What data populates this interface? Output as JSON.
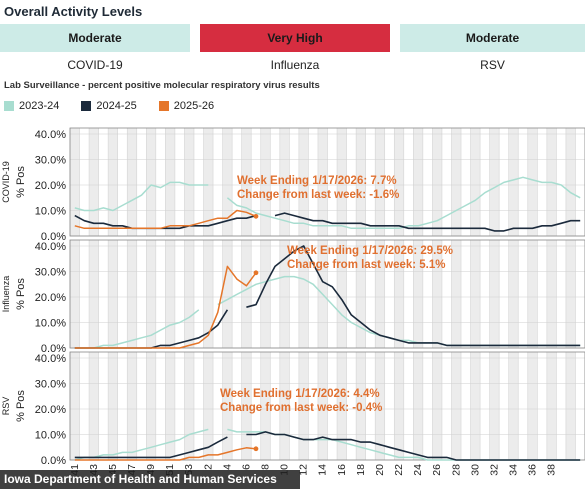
{
  "header": {
    "title": "Overall Activity Levels"
  },
  "activity_levels": [
    {
      "level": "Moderate",
      "virus": "COVID-19",
      "color": "#cdebe7",
      "text_color": "#1a1a1a"
    },
    {
      "level": "Very High",
      "virus": "Influenza",
      "color": "#d62d40",
      "text_color": "#1a1a1a"
    },
    {
      "level": "Moderate",
      "virus": "RSV",
      "color": "#cdebe7",
      "text_color": "#1a1a1a"
    }
  ],
  "subtitle": "Lab Surveillance - percent positive molecular respiratory virus results",
  "legend": [
    {
      "label": "2023-24",
      "color": "#a8ddd0"
    },
    {
      "label": "2024-25",
      "color": "#1b2a3c"
    },
    {
      "label": "2025-26",
      "color": "#e5762a"
    }
  ],
  "footer": {
    "text": "Iowa Department of Health and Human Services"
  },
  "chart_data": {
    "type": "line",
    "x_label_weeks": [
      "41",
      "43",
      "45",
      "47",
      "49",
      "51",
      "53",
      "2",
      "4",
      "6",
      "8",
      "10",
      "12",
      "14",
      "16",
      "18",
      "20",
      "22",
      "24",
      "26",
      "28",
      "30",
      "32",
      "34",
      "36",
      "38"
    ],
    "ylabel": "% Pos",
    "panels": [
      {
        "name": "COVID-19",
        "ylim": [
          0,
          40
        ],
        "yticks": [
          "0.0%",
          "10.0%",
          "20.0%",
          "30.0%",
          "40.0%"
        ],
        "annotation": [
          "Week Ending 1/17/2026: 7.7%",
          "Change from last week:  -1.6%"
        ],
        "series": [
          {
            "name": "2023-24",
            "values": [
              11,
              10,
              10,
              11,
              10,
              12,
              14,
              16,
              20,
              19,
              21,
              21,
              20,
              20,
              20,
              null,
              15,
              12,
              11,
              9,
              8,
              7,
              6,
              5,
              5,
              4,
              4,
              4,
              4,
              3,
              3,
              3,
              3,
              3,
              3,
              4,
              4,
              5,
              6,
              8,
              10,
              12,
              14,
              17,
              19,
              21,
              22,
              23,
              22,
              21,
              21,
              20,
              17,
              15
            ]
          },
          {
            "name": "2024-25",
            "values": [
              8,
              6,
              5,
              5,
              4,
              4,
              3,
              3,
              3,
              3,
              3,
              3,
              4,
              4,
              4,
              5,
              6,
              7,
              7,
              8,
              null,
              8,
              9,
              8,
              7,
              6,
              6,
              5,
              5,
              5,
              5,
              4,
              4,
              4,
              4,
              3,
              3,
              3,
              3,
              3,
              3,
              3,
              3,
              3,
              2,
              2,
              3,
              3,
              3,
              4,
              4,
              5,
              6,
              6,
              7,
              7,
              8,
              8,
              9,
              10,
              12,
              12,
              12,
              11,
              10
            ]
          },
          {
            "name": "2025-26",
            "values": [
              4,
              3,
              3,
              3,
              3,
              3,
              3,
              3,
              3,
              3,
              4,
              4,
              4,
              5,
              6,
              7,
              7,
              10,
              9.3,
              7.7
            ]
          }
        ]
      },
      {
        "name": "Influenza",
        "ylim": [
          0,
          40
        ],
        "yticks": [
          "0.0%",
          "10.0%",
          "20.0%",
          "30.0%",
          "40.0%"
        ],
        "annotation": [
          "Week Ending 1/17/2026: 29.5%",
          "Change from last week:  5.1%"
        ],
        "series": [
          {
            "name": "2023-24",
            "values": [
              0,
              0,
              0,
              1,
              1,
              2,
              3,
              4,
              5,
              7,
              9,
              10,
              12,
              15,
              null,
              17,
              19,
              21,
              23,
              25,
              26,
              27,
              28,
              28,
              27,
              25,
              21,
              17,
              13,
              10,
              8,
              6,
              5,
              4,
              3,
              3,
              2,
              2,
              2,
              1,
              1,
              1,
              1,
              1,
              1,
              1,
              1,
              1,
              1,
              1,
              1,
              1,
              1,
              1,
              1,
              1
            ]
          },
          {
            "name": "2024-25",
            "values": [
              0,
              0,
              0,
              0,
              0,
              0,
              0,
              0,
              0,
              1,
              1,
              2,
              3,
              4,
              6,
              9,
              15,
              null,
              16,
              17,
              25,
              32,
              35,
              38,
              40,
              33,
              26,
              24,
              19,
              13,
              10,
              7,
              5,
              4,
              3,
              2,
              2,
              2,
              2,
              1,
              1,
              1,
              1,
              1,
              1,
              1,
              1,
              1,
              1,
              1,
              1,
              1,
              1,
              1,
              1,
              1
            ]
          },
          {
            "name": "2025-26",
            "values": [
              0,
              0,
              0,
              0,
              0,
              0,
              0,
              0,
              0,
              0,
              0,
              0,
              1,
              2,
              5,
              14,
              32,
              27,
              24.4,
              29.5
            ]
          }
        ]
      },
      {
        "name": "RSV",
        "ylim": [
          0,
          40
        ],
        "yticks": [
          "0.0%",
          "10.0%",
          "20.0%",
          "30.0%",
          "40.0%"
        ],
        "annotation": [
          "Week Ending 1/17/2026: 4.4%",
          "Change from last week:  -0.4%"
        ],
        "series": [
          {
            "name": "2023-24",
            "values": [
              0,
              1,
              1,
              2,
              2,
              3,
              3,
              4,
              5,
              6,
              7,
              8,
              10,
              11,
              12,
              null,
              12,
              11,
              11,
              11,
              11,
              10,
              10,
              9,
              8,
              8,
              8,
              8,
              7,
              6,
              5,
              4,
              3,
              2,
              1,
              1,
              1,
              0,
              0,
              0,
              0,
              0,
              0,
              0,
              0,
              0,
              0,
              0,
              0,
              0,
              0,
              0,
              0,
              0,
              0,
              0
            ]
          },
          {
            "name": "2024-25",
            "values": [
              1,
              1,
              1,
              1,
              1,
              1,
              1,
              1,
              1,
              1,
              1,
              2,
              3,
              4,
              5,
              7,
              9,
              null,
              10,
              10,
              11,
              10,
              10,
              9,
              8,
              8,
              9,
              8,
              8,
              8,
              7,
              7,
              6,
              5,
              4,
              3,
              2,
              1,
              1,
              1,
              0,
              0,
              0,
              0,
              0,
              0,
              0,
              0,
              0,
              0,
              0,
              0,
              0,
              0,
              0,
              0
            ]
          },
          {
            "name": "2025-26",
            "values": [
              0,
              0,
              0,
              0,
              0,
              0,
              0,
              0,
              0,
              0,
              0,
              0,
              1,
              1,
              2,
              2,
              3,
              4,
              4.8,
              4.4
            ]
          }
        ]
      }
    ]
  }
}
